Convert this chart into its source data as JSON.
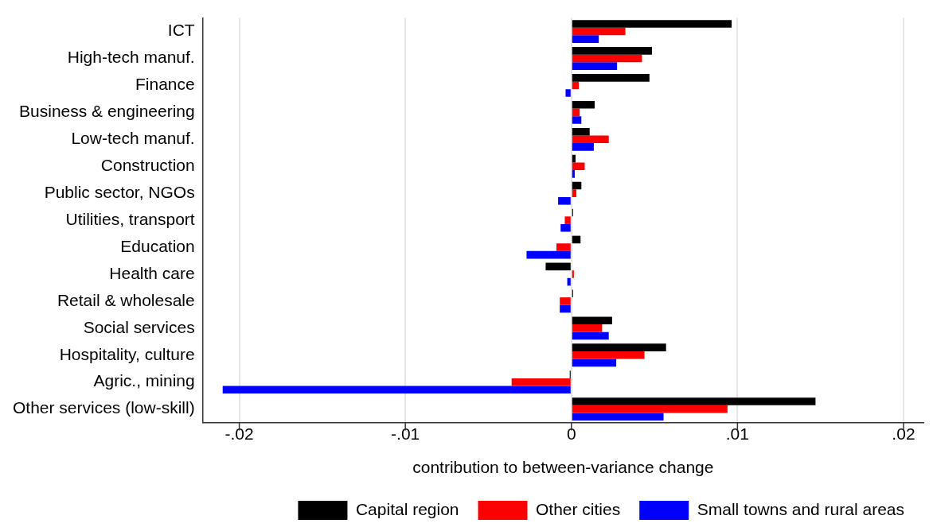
{
  "chart_data": {
    "type": "bar",
    "orientation": "horizontal",
    "xlabel": "contribution to between-variance change",
    "categories": [
      "ICT",
      "High-tech manuf.",
      "Finance",
      "Business & engineering",
      "Low-tech manuf.",
      "Construction",
      "Public sector, NGOs",
      "Utilities, transport",
      "Education",
      "Health care",
      "Retail & wholesale",
      "Social services",
      "Hospitality, culture",
      "Agric., mining",
      "Other services (low-skill)"
    ],
    "series": [
      {
        "name": "Capital region",
        "color": "#000000",
        "values": [
          0.00965,
          0.00485,
          0.0047,
          0.0014,
          0.0011,
          0.00025,
          0.0006,
          0.0001,
          0.00055,
          -0.00155,
          0.0001,
          0.00245,
          0.0057,
          -0.0001,
          0.0147
        ]
      },
      {
        "name": "Other cities",
        "color": "#ff0000",
        "values": [
          0.00325,
          0.00425,
          0.00045,
          0.0005,
          0.00225,
          0.0008,
          0.0003,
          -0.0004,
          -0.0009,
          0.00015,
          -0.0007,
          0.00185,
          0.0044,
          -0.0036,
          0.0094
        ]
      },
      {
        "name": "Small towns and rural areas",
        "color": "#0000ff",
        "values": [
          0.00165,
          0.00275,
          -0.00035,
          0.0006,
          0.00135,
          0.0002,
          -0.0008,
          -0.00065,
          -0.0027,
          -0.00025,
          -0.0007,
          0.00225,
          0.0027,
          -0.021,
          0.00555
        ]
      }
    ],
    "xlim": [
      -0.0222,
      0.0212
    ],
    "xticks": [
      {
        "value": -0.02,
        "label": "-.02"
      },
      {
        "value": -0.01,
        "label": "-.01"
      },
      0,
      {
        "value": 0.01,
        "label": ".01"
      },
      {
        "value": 0.02,
        "label": ".02"
      }
    ],
    "grid": "x",
    "legend": "bottom"
  }
}
